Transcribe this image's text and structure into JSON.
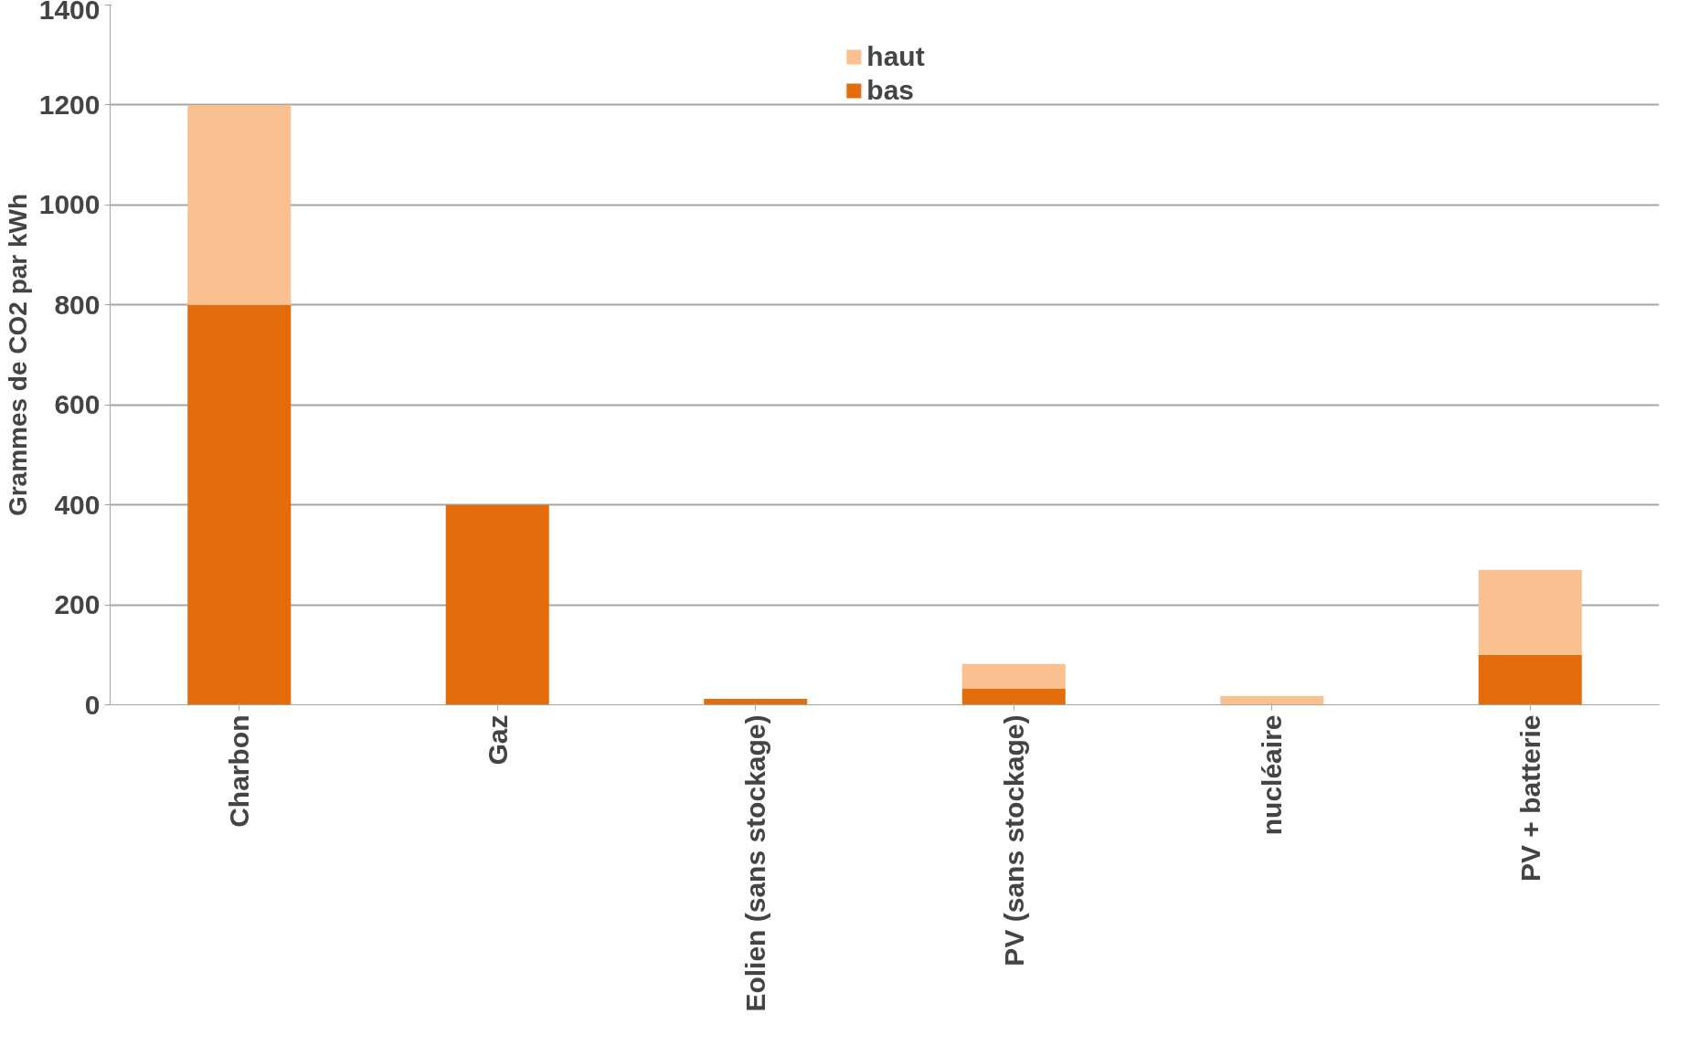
{
  "chart_data": {
    "type": "bar",
    "stacked": true,
    "ylabel": "Grammes de CO2 par kWh",
    "categories": [
      "Charbon",
      "Gaz",
      "Eolien (sans stockage)",
      "PV (sans stockage)",
      "nucléaire",
      "PV + batterie"
    ],
    "series": [
      {
        "name": "bas",
        "color": "#e46c0a",
        "values": [
          800,
          400,
          12,
          33,
          0,
          100
        ]
      },
      {
        "name": "haut",
        "color": "#fac090",
        "values": [
          400,
          0,
          0,
          49,
          18,
          170
        ]
      }
    ],
    "ylim": [
      0,
      1400
    ],
    "yticks": [
      0,
      200,
      400,
      600,
      800,
      1000,
      1200,
      1400
    ],
    "grid": "y",
    "legend": "top"
  }
}
